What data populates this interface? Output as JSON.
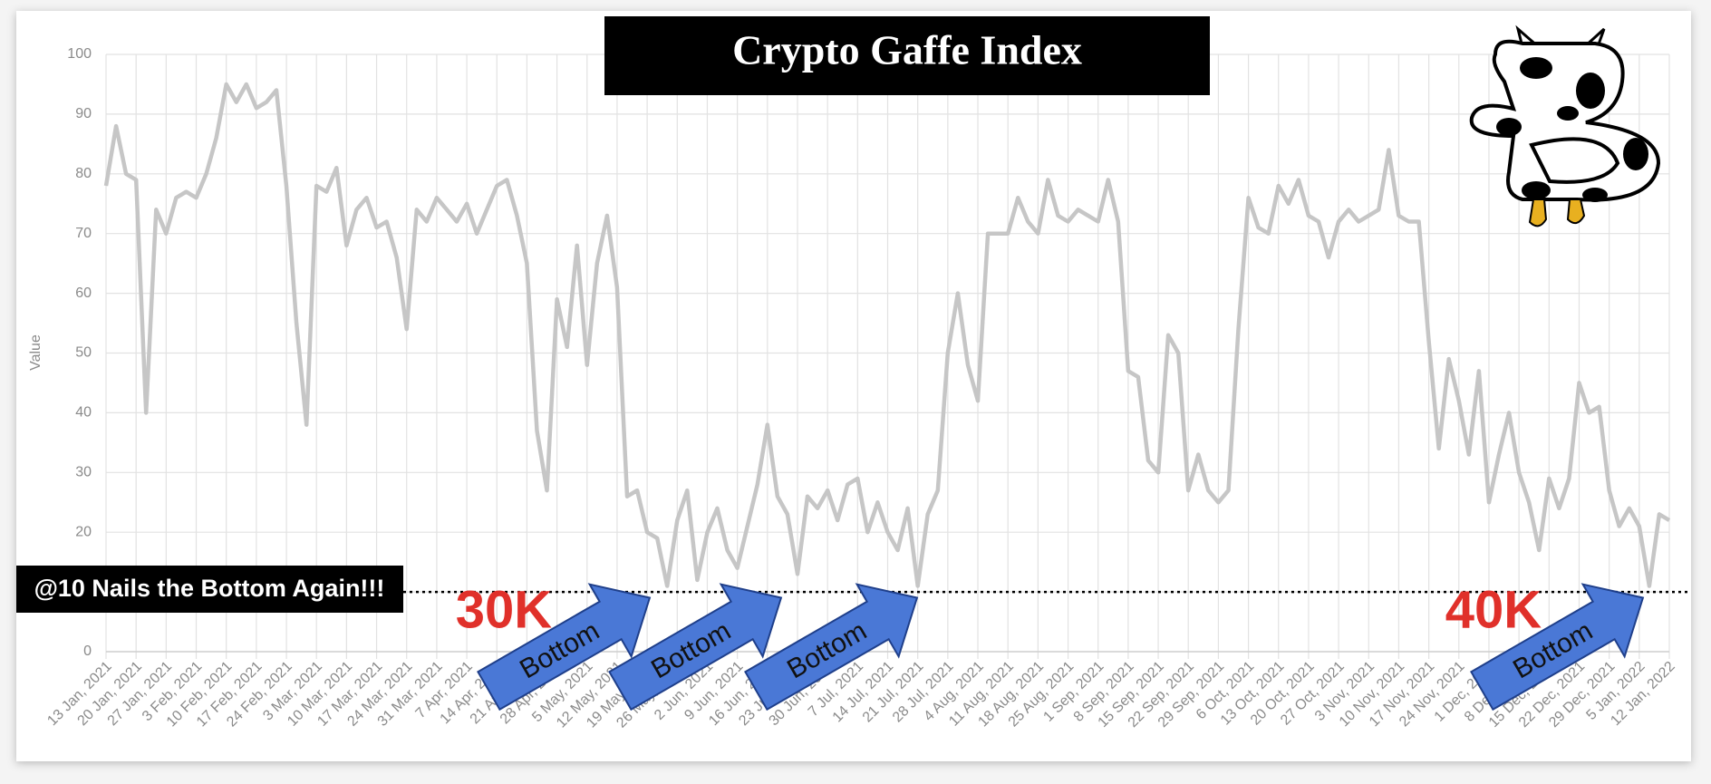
{
  "chart_data": {
    "type": "line",
    "title": "Crypto Gaffe Index",
    "y_label": "Value",
    "color": "#c6c6c6",
    "grid": true,
    "ylim": [
      0,
      100
    ],
    "yticks": [
      0,
      10,
      20,
      30,
      40,
      50,
      60,
      70,
      80,
      90,
      100
    ],
    "reference_line": 10,
    "annotations": [
      "@10 Nails the Bottom Again!!!",
      "30K",
      "40K",
      "Bottom",
      "Bottom",
      "Bottom",
      "Bottom"
    ],
    "categories": [
      "13 Jan, 2021",
      null,
      null,
      "20 Jan, 2021",
      null,
      null,
      "27 Jan, 2021",
      null,
      null,
      "3 Feb, 2021",
      null,
      null,
      "10 Feb, 2021",
      null,
      null,
      "17 Feb, 2021",
      null,
      null,
      "24 Feb, 2021",
      null,
      null,
      "3 Mar, 2021",
      null,
      null,
      "10 Mar, 2021",
      null,
      null,
      "17 Mar, 2021",
      null,
      null,
      "24 Mar, 2021",
      null,
      null,
      "31 Mar, 2021",
      null,
      null,
      "7 Apr, 2021",
      null,
      null,
      "14 Apr, 2021",
      null,
      null,
      "21 Apr, 2021",
      null,
      null,
      "28 Apr, 2021",
      null,
      null,
      "5 May, 2021",
      null,
      null,
      "12 May, 2021",
      null,
      null,
      "19 May, 2021",
      null,
      null,
      "26 May, 2021",
      null,
      null,
      "2 Jun, 2021",
      null,
      null,
      "9 Jun, 2021",
      null,
      null,
      "16 Jun, 2021",
      null,
      null,
      "23 Jun, 2021",
      null,
      null,
      "30 Jun, 2021",
      null,
      null,
      "7 Jul, 2021",
      null,
      null,
      "14 Jul, 2021",
      null,
      null,
      "21 Jul, 2021",
      null,
      null,
      "28 Jul, 2021",
      null,
      null,
      "4 Aug, 2021",
      null,
      null,
      "11 Aug, 2021",
      null,
      null,
      "18 Aug, 2021",
      null,
      null,
      "25 Aug, 2021",
      null,
      null,
      "1 Sep, 2021",
      null,
      null,
      "8 Sep, 2021",
      null,
      null,
      "15 Sep, 2021",
      null,
      null,
      "22 Sep, 2021",
      null,
      null,
      "29 Sep, 2021",
      null,
      null,
      "6 Oct, 2021",
      null,
      null,
      "13 Oct, 2021",
      null,
      null,
      "20 Oct, 2021",
      null,
      null,
      "27 Oct, 2021",
      null,
      null,
      "3 Nov, 2021",
      null,
      null,
      "10 Nov, 2021",
      null,
      null,
      "17 Nov, 2021",
      null,
      null,
      "24 Nov, 2021",
      null,
      null,
      "1 Dec, 2021",
      null,
      null,
      "8 Dec, 2021",
      null,
      null,
      "15 Dec, 2021",
      null,
      null,
      "22 Dec, 2021",
      null,
      null,
      "29 Dec, 2021",
      null,
      null,
      "5 Jan, 2022",
      null,
      null,
      "12 Jan, 2022"
    ],
    "values": [
      78,
      88,
      80,
      79,
      40,
      74,
      70,
      76,
      77,
      76,
      80,
      86,
      95,
      92,
      95,
      91,
      92,
      94,
      78,
      55,
      38,
      78,
      77,
      81,
      68,
      74,
      76,
      71,
      72,
      66,
      54,
      74,
      72,
      76,
      74,
      72,
      75,
      70,
      74,
      78,
      79,
      73,
      65,
      37,
      27,
      59,
      51,
      68,
      48,
      65,
      73,
      61,
      26,
      27,
      20,
      19,
      11,
      22,
      27,
      12,
      20,
      24,
      17,
      14,
      21,
      28,
      38,
      26,
      23,
      13,
      26,
      24,
      27,
      22,
      28,
      29,
      20,
      25,
      20,
      17,
      24,
      11,
      23,
      27,
      50,
      60,
      48,
      42,
      70,
      70,
      70,
      76,
      72,
      70,
      79,
      73,
      72,
      74,
      73,
      72,
      79,
      72,
      47,
      46,
      32,
      30,
      53,
      50,
      27,
      33,
      27,
      25,
      27,
      54,
      76,
      71,
      70,
      78,
      75,
      79,
      73,
      72,
      66,
      72,
      74,
      72,
      73,
      74,
      84,
      73,
      72,
      72,
      52,
      34,
      49,
      42,
      33,
      47,
      25,
      33,
      40,
      30,
      25,
      17,
      29,
      24,
      29,
      45,
      40,
      41,
      27,
      21,
      24,
      21,
      11,
      23,
      22
    ]
  }
}
